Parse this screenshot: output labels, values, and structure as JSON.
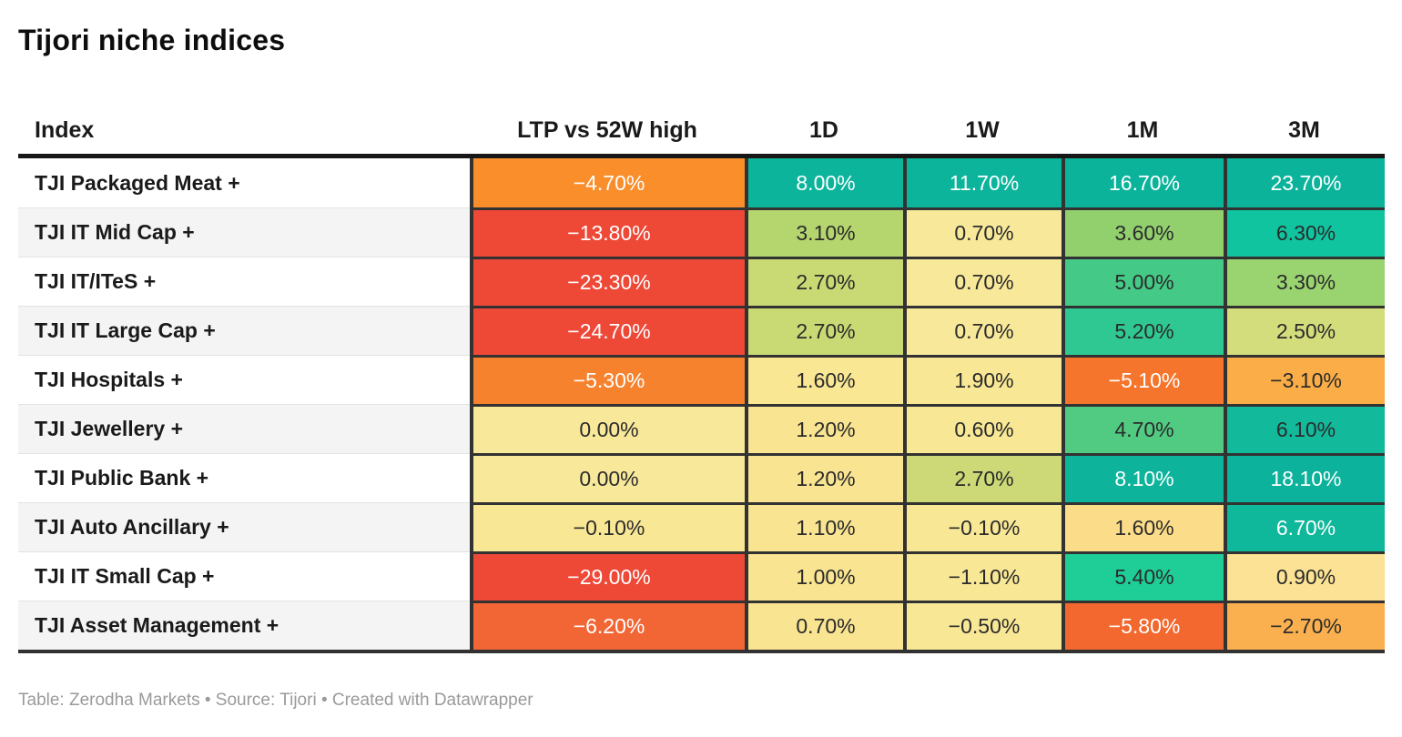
{
  "title": "Tijori niche indices",
  "footer": {
    "text": "Table: Zerodha Markets • Source: Tijori • Created with Datawrapper"
  },
  "colors": {
    "grid": "#323232",
    "header_rule": "#171717",
    "row_alt_bg": "#f4f4f4",
    "dark_text": "#2b2b2b",
    "light_text": "#ffffff",
    "footer_text": "#9a9a9a"
  },
  "table": {
    "columns": [
      {
        "label": "Index"
      },
      {
        "label": "LTP vs 52W high"
      },
      {
        "label": "1D"
      },
      {
        "label": "1W"
      },
      {
        "label": "1M"
      },
      {
        "label": "3M"
      }
    ],
    "rows": [
      {
        "name": "TJI Packaged Meat +",
        "cells": [
          {
            "value": "−4.70%",
            "bg": "#f98e2b",
            "fg": "#ffffff"
          },
          {
            "value": "8.00%",
            "bg": "#0db49c",
            "fg": "#ffffff"
          },
          {
            "value": "11.70%",
            "bg": "#0db49c",
            "fg": "#ffffff"
          },
          {
            "value": "16.70%",
            "bg": "#0cb39b",
            "fg": "#ffffff"
          },
          {
            "value": "23.70%",
            "bg": "#0cb39b",
            "fg": "#ffffff"
          }
        ]
      },
      {
        "name": "TJI IT Mid Cap +",
        "cells": [
          {
            "value": "−13.80%",
            "bg": "#ee4837",
            "fg": "#ffffff"
          },
          {
            "value": "3.10%",
            "bg": "#b5d56e",
            "fg": "#2b2b2b"
          },
          {
            "value": "0.70%",
            "bg": "#f8e89a",
            "fg": "#2b2b2b"
          },
          {
            "value": "3.60%",
            "bg": "#92d06e",
            "fg": "#2b2b2b"
          },
          {
            "value": "6.30%",
            "bg": "#10c4a0",
            "fg": "#2b2b2b"
          }
        ]
      },
      {
        "name": "TJI IT/ITeS +",
        "cells": [
          {
            "value": "−23.30%",
            "bg": "#ee4837",
            "fg": "#ffffff"
          },
          {
            "value": "2.70%",
            "bg": "#c9da75",
            "fg": "#2b2b2b"
          },
          {
            "value": "0.70%",
            "bg": "#f8e89a",
            "fg": "#2b2b2b"
          },
          {
            "value": "5.00%",
            "bg": "#44ca86",
            "fg": "#2b2b2b"
          },
          {
            "value": "3.30%",
            "bg": "#9ad470",
            "fg": "#2b2b2b"
          }
        ]
      },
      {
        "name": "TJI IT Large Cap +",
        "cells": [
          {
            "value": "−24.70%",
            "bg": "#ee4837",
            "fg": "#ffffff"
          },
          {
            "value": "2.70%",
            "bg": "#c9da75",
            "fg": "#2b2b2b"
          },
          {
            "value": "0.70%",
            "bg": "#f8e89a",
            "fg": "#2b2b2b"
          },
          {
            "value": "5.20%",
            "bg": "#2fc893",
            "fg": "#2b2b2b"
          },
          {
            "value": "2.50%",
            "bg": "#d3dd7b",
            "fg": "#2b2b2b"
          }
        ]
      },
      {
        "name": "TJI Hospitals +",
        "cells": [
          {
            "value": "−5.30%",
            "bg": "#f7822e",
            "fg": "#ffffff"
          },
          {
            "value": "1.60%",
            "bg": "#f9e794",
            "fg": "#2b2b2b"
          },
          {
            "value": "1.90%",
            "bg": "#f8e794",
            "fg": "#2b2b2b"
          },
          {
            "value": "−5.10%",
            "bg": "#f5752c",
            "fg": "#ffffff"
          },
          {
            "value": "−3.10%",
            "bg": "#fbae47",
            "fg": "#2b2b2b"
          }
        ]
      },
      {
        "name": "TJI Jewellery +",
        "cells": [
          {
            "value": "0.00%",
            "bg": "#f8e89a",
            "fg": "#2b2b2b"
          },
          {
            "value": "1.20%",
            "bg": "#f9e491",
            "fg": "#2b2b2b"
          },
          {
            "value": "0.60%",
            "bg": "#f8e794",
            "fg": "#2b2b2b"
          },
          {
            "value": "4.70%",
            "bg": "#52cb82",
            "fg": "#2b2b2b"
          },
          {
            "value": "6.10%",
            "bg": "#12b99b",
            "fg": "#2b2b2b"
          }
        ]
      },
      {
        "name": "TJI Public Bank +",
        "cells": [
          {
            "value": "0.00%",
            "bg": "#f8e89a",
            "fg": "#2b2b2b"
          },
          {
            "value": "1.20%",
            "bg": "#f9e491",
            "fg": "#2b2b2b"
          },
          {
            "value": "2.70%",
            "bg": "#ccd976",
            "fg": "#2b2b2b"
          },
          {
            "value": "8.10%",
            "bg": "#0db49b",
            "fg": "#ffffff"
          },
          {
            "value": "18.10%",
            "bg": "#0cb29b",
            "fg": "#ffffff"
          }
        ]
      },
      {
        "name": "TJI Auto Ancillary +",
        "cells": [
          {
            "value": "−0.10%",
            "bg": "#f8e795",
            "fg": "#2b2b2b"
          },
          {
            "value": "1.10%",
            "bg": "#f9e491",
            "fg": "#2b2b2b"
          },
          {
            "value": "−0.10%",
            "bg": "#f8e795",
            "fg": "#2b2b2b"
          },
          {
            "value": "1.60%",
            "bg": "#fbdc88",
            "fg": "#2b2b2b"
          },
          {
            "value": "6.70%",
            "bg": "#0fb79b",
            "fg": "#ffffff"
          }
        ]
      },
      {
        "name": "TJI IT Small Cap +",
        "cells": [
          {
            "value": "−29.00%",
            "bg": "#ee4837",
            "fg": "#ffffff"
          },
          {
            "value": "1.00%",
            "bg": "#f9e491",
            "fg": "#2b2b2b"
          },
          {
            "value": "−1.10%",
            "bg": "#f8e795",
            "fg": "#2b2b2b"
          },
          {
            "value": "5.40%",
            "bg": "#1fce97",
            "fg": "#2b2b2b"
          },
          {
            "value": "0.90%",
            "bg": "#fbe294",
            "fg": "#2b2b2b"
          }
        ]
      },
      {
        "name": "TJI Asset Management +",
        "cells": [
          {
            "value": "−6.20%",
            "bg": "#f26636",
            "fg": "#ffffff"
          },
          {
            "value": "0.70%",
            "bg": "#f9e491",
            "fg": "#2b2b2b"
          },
          {
            "value": "−0.50%",
            "bg": "#f8e795",
            "fg": "#2b2b2b"
          },
          {
            "value": "−5.80%",
            "bg": "#f2682e",
            "fg": "#ffffff"
          },
          {
            "value": "−2.70%",
            "bg": "#fbb050",
            "fg": "#2b2b2b"
          }
        ]
      }
    ]
  },
  "chart_data": {
    "type": "table",
    "title": "Tijori niche indices",
    "columns": [
      "Index",
      "LTP vs 52W high",
      "1D",
      "1W",
      "1M",
      "3M"
    ],
    "rows": [
      {
        "index": "TJI Packaged Meat +",
        "values": [
          -4.7,
          8.0,
          11.7,
          16.7,
          23.7
        ]
      },
      {
        "index": "TJI IT Mid Cap +",
        "values": [
          -13.8,
          3.1,
          0.7,
          3.6,
          6.3
        ]
      },
      {
        "index": "TJI IT/ITeS +",
        "values": [
          -23.3,
          2.7,
          0.7,
          5.0,
          3.3
        ]
      },
      {
        "index": "TJI IT Large Cap +",
        "values": [
          -24.7,
          2.7,
          0.7,
          5.2,
          2.5
        ]
      },
      {
        "index": "TJI Hospitals +",
        "values": [
          -5.3,
          1.6,
          1.9,
          -5.1,
          -3.1
        ]
      },
      {
        "index": "TJI Jewellery +",
        "values": [
          0.0,
          1.2,
          0.6,
          4.7,
          6.1
        ]
      },
      {
        "index": "TJI Public Bank +",
        "values": [
          0.0,
          1.2,
          2.7,
          8.1,
          18.1
        ]
      },
      {
        "index": "TJI Auto Ancillary +",
        "values": [
          -0.1,
          1.1,
          -0.1,
          1.6,
          6.7
        ]
      },
      {
        "index": "TJI IT Small Cap +",
        "values": [
          -29.0,
          1.0,
          -1.1,
          5.4,
          0.9
        ]
      },
      {
        "index": "TJI Asset Management +",
        "values": [
          -6.2,
          0.7,
          -0.5,
          -5.8,
          -2.7
        ]
      }
    ],
    "value_unit": "%",
    "color_encoding": "heatmap: red (negative) → yellow (≈0) → green/teal (positive)"
  }
}
